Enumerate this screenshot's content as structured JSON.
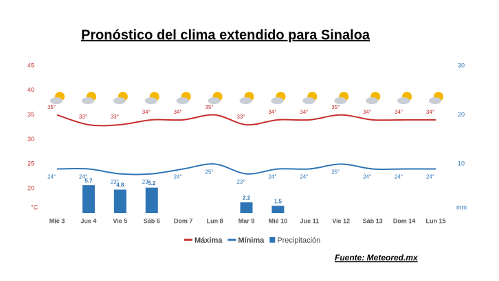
{
  "chart_data": {
    "type": "weather",
    "title": "Pronóstico del clima extendido para Sinaloa",
    "source": "Fuente: Meteored.mx",
    "ylabel": "°C",
    "y2label": "mm",
    "categories": [
      "Mié 3",
      "Jue 4",
      "Vie 5",
      "Sáb 6",
      "Dom 7",
      "Lun 8",
      "Mar 9",
      "Mié 10",
      "Jue 11",
      "Vie 12",
      "Sáb 13",
      "Dom 14",
      "Lun 15"
    ],
    "ylim": [
      15,
      45
    ],
    "yticks": [
      20,
      25,
      30,
      35,
      40,
      45
    ],
    "y2lim": [
      0,
      30
    ],
    "y2ticks": [
      10,
      20,
      30
    ],
    "grid": false,
    "series": [
      {
        "name": "Máxima",
        "color": "#c62d2d",
        "kind": "line",
        "values": [
          35,
          33,
          33,
          34,
          34,
          35,
          33,
          34,
          34,
          35,
          34,
          34,
          34
        ],
        "value_labels": [
          "35°",
          "33°",
          "33°",
          "34°",
          "34°",
          "35°",
          "33°",
          "34°",
          "34°",
          "35°",
          "34°",
          "34°",
          "34°"
        ]
      },
      {
        "name": "Mínima",
        "color": "#2e75b6",
        "kind": "line",
        "values": [
          24,
          24,
          23,
          23,
          24,
          25,
          23,
          24,
          24,
          25,
          24,
          24,
          24
        ],
        "value_labels": [
          "24°",
          "24°",
          "23°",
          "23°",
          "24°",
          "25°",
          "23°",
          "24°",
          "24°",
          "25°",
          "24°",
          "24°",
          "24°"
        ]
      },
      {
        "name": "Precipitación",
        "color": "#2e75b6",
        "kind": "bar",
        "axis": "y2",
        "values": [
          null,
          5.7,
          4.8,
          5.2,
          null,
          null,
          2.2,
          1.5,
          null,
          null,
          null,
          null,
          null
        ]
      }
    ]
  }
}
